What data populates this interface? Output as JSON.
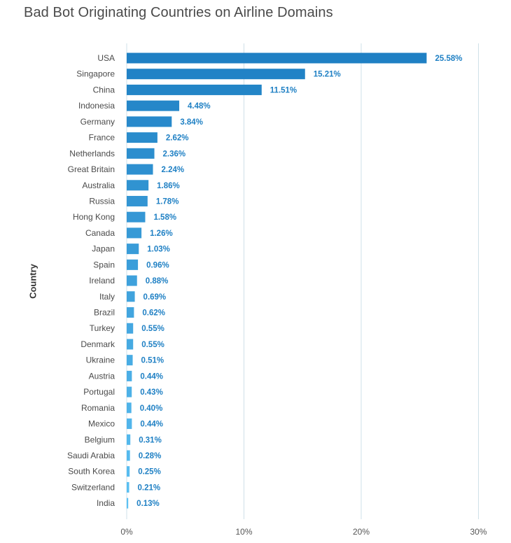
{
  "chart_data": {
    "type": "bar",
    "orientation": "horizontal",
    "title": "Bad Bot Originating Countries on Airline Domains",
    "ylabel": "Country",
    "xlabel": "",
    "xlim": [
      0,
      30
    ],
    "xticks": [
      0,
      10,
      20,
      30
    ],
    "xtick_labels": [
      "0%",
      "10%",
      "20%",
      "30%"
    ],
    "grid": "vertical",
    "categories": [
      "USA",
      "Singapore",
      "China",
      "Indonesia",
      "Germany",
      "France",
      "Netherlands",
      "Great Britain",
      "Australia",
      "Russia",
      "Hong Kong",
      "Canada",
      "Japan",
      "Spain",
      "Ireland",
      "Italy",
      "Brazil",
      "Turkey",
      "Denmark",
      "Ukraine",
      "Austria",
      "Portugal",
      "Romania",
      "Mexico",
      "Belgium",
      "Saudi Arabia",
      "South Korea",
      "Switzerland",
      "India"
    ],
    "values": [
      25.58,
      15.21,
      11.51,
      4.48,
      3.84,
      2.62,
      2.36,
      2.24,
      1.86,
      1.78,
      1.58,
      1.26,
      1.03,
      0.96,
      0.88,
      0.69,
      0.62,
      0.55,
      0.55,
      0.51,
      0.44,
      0.43,
      0.4,
      0.44,
      0.31,
      0.28,
      0.25,
      0.21,
      0.13
    ],
    "value_labels": [
      "25.58%",
      "15.21%",
      "11.51%",
      "4.48%",
      "3.84%",
      "2.62%",
      "2.36%",
      "2.24%",
      "1.86%",
      "1.78%",
      "1.58%",
      "1.26%",
      "1.03%",
      "0.96%",
      "0.88%",
      "0.69%",
      "0.62%",
      "0.55%",
      "0.55%",
      "0.51%",
      "0.44%",
      "0.43%",
      "0.40%",
      "0.44%",
      "0.31%",
      "0.28%",
      "0.25%",
      "0.21%",
      "0.13%"
    ],
    "colors": {
      "bar_dark": "#1f80c4",
      "bar_light": "#5cc1f3",
      "value_label": "#1f80c4",
      "gridline": "#cfe0e8",
      "category_label": "#4a4a4a",
      "tick_label": "#555555"
    }
  }
}
